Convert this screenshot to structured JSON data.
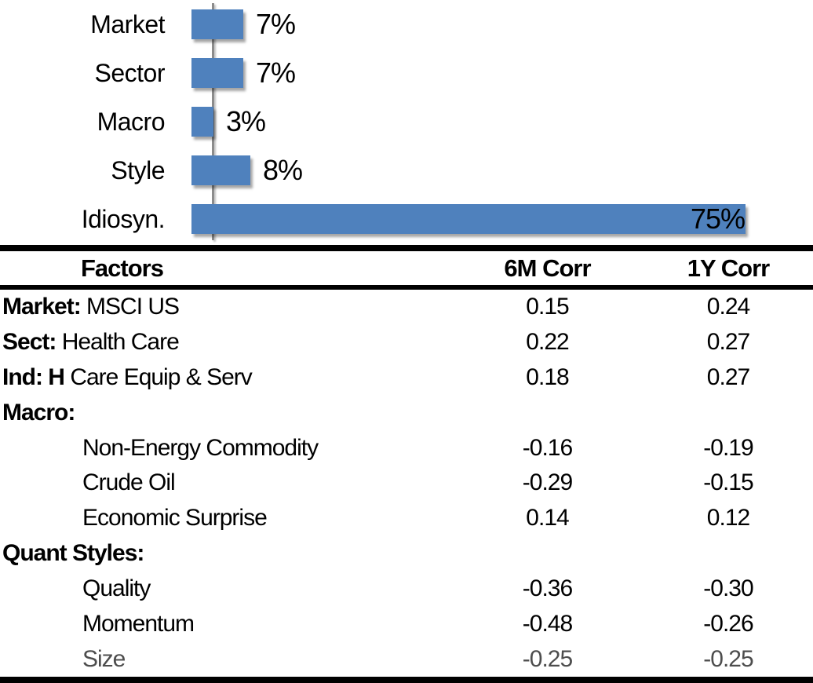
{
  "chart_data": [
    {
      "type": "bar",
      "orientation": "horizontal",
      "title": "",
      "xlabel": "",
      "ylabel": "",
      "categories": [
        "Market",
        "Sector",
        "Macro",
        "Style",
        "Idiosyn."
      ],
      "values": [
        7,
        7,
        3,
        8,
        75
      ],
      "value_labels": [
        "7%",
        "7%",
        "3%",
        "8%",
        "75%"
      ],
      "bar_color": "#4F81BD",
      "axis_color": "#8C8C8C",
      "xlim": [
        0,
        81
      ],
      "grid": false,
      "legend": false,
      "value_label_position": "end-of-bar"
    },
    {
      "type": "table",
      "headers": [
        "Factors",
        "6M Corr",
        "1Y Corr"
      ],
      "rows": [
        {
          "bold": "Market:",
          "text": " MSCI US",
          "indent": false,
          "corr_6m": "0.15",
          "corr_1y": "0.24",
          "muted": false
        },
        {
          "bold": "Sect:",
          "text": " Health Care",
          "indent": false,
          "corr_6m": "0.22",
          "corr_1y": "0.27",
          "muted": false
        },
        {
          "bold": "Ind: H",
          "text": " Care Equip & Serv",
          "indent": false,
          "corr_6m": "0.18",
          "corr_1y": "0.27",
          "muted": false
        },
        {
          "bold": "Macro:",
          "text": "",
          "indent": false,
          "corr_6m": "",
          "corr_1y": "",
          "muted": false
        },
        {
          "bold": "",
          "text": "Non-Energy Commodity",
          "indent": true,
          "corr_6m": "-0.16",
          "corr_1y": "-0.19",
          "muted": false
        },
        {
          "bold": "",
          "text": "Crude Oil",
          "indent": true,
          "corr_6m": "-0.29",
          "corr_1y": "-0.15",
          "muted": false
        },
        {
          "bold": "",
          "text": "Economic Surprise",
          "indent": true,
          "corr_6m": "0.14",
          "corr_1y": "0.12",
          "muted": false
        },
        {
          "bold": "Quant Styles:",
          "text": "",
          "indent": false,
          "corr_6m": "",
          "corr_1y": "",
          "muted": false
        },
        {
          "bold": "",
          "text": "Quality",
          "indent": true,
          "corr_6m": "-0.36",
          "corr_1y": "-0.30",
          "muted": false
        },
        {
          "bold": "",
          "text": "Momentum",
          "indent": true,
          "corr_6m": "-0.48",
          "corr_1y": "-0.26",
          "muted": false
        },
        {
          "bold": "",
          "text": "Size",
          "indent": true,
          "corr_6m": "-0.25",
          "corr_1y": "-0.25",
          "muted": true
        }
      ]
    }
  ]
}
